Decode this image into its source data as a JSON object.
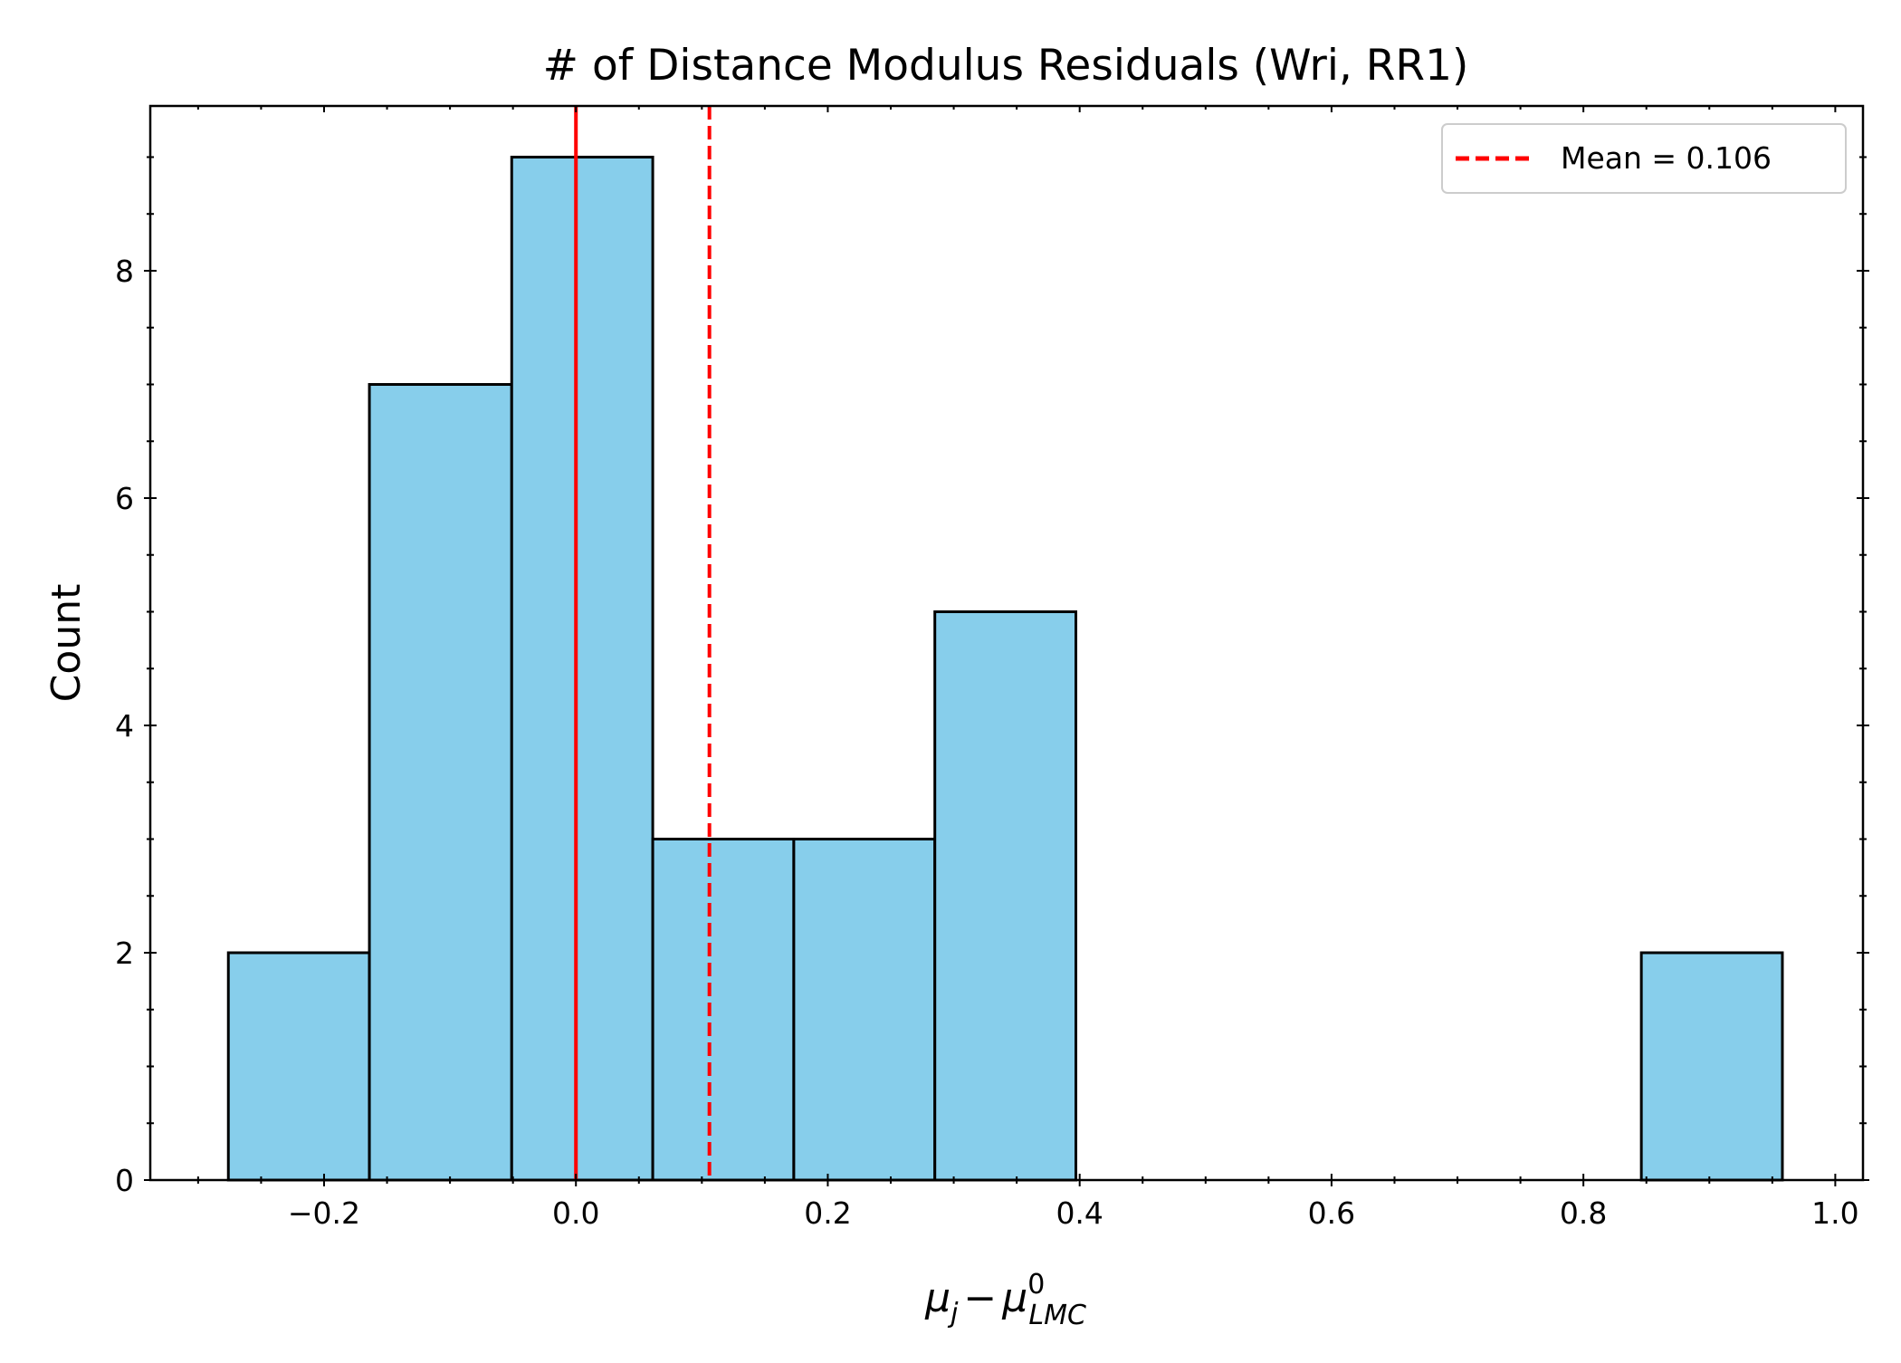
{
  "chart_data": {
    "type": "bar",
    "title": "# of Distance Modulus Residuals (Wri, RR1)",
    "xlabel": {
      "base": "μ",
      "sub1": "j",
      "minus": "−",
      "base2": "μ",
      "sup": "0",
      "sub2": "LMC"
    },
    "ylabel": "Count",
    "xlim": [
      -0.338,
      1.022
    ],
    "ylim": [
      0,
      9.45
    ],
    "xticks": [
      -0.2,
      0.0,
      0.2,
      0.4,
      0.6,
      0.8,
      1.0
    ],
    "xtick_labels": [
      "−0.2",
      "0.0",
      "0.2",
      "0.4",
      "0.6",
      "0.8",
      "1.0"
    ],
    "yticks": [
      0,
      2,
      4,
      6,
      8
    ],
    "ytick_labels": [
      "0",
      "2",
      "4",
      "6",
      "8"
    ],
    "bin_edges": [
      -0.276,
      -0.164,
      -0.051,
      0.061,
      0.173,
      0.285,
      0.397,
      0.509,
      0.622,
      0.734,
      0.846,
      0.958
    ],
    "counts": [
      2,
      7,
      9,
      3,
      3,
      5,
      0,
      0,
      0,
      0,
      2
    ],
    "bar_color": "#87CEEB",
    "bar_edge_color": "#000000",
    "zero_line": {
      "x": 0.0,
      "color": "#ff0000",
      "style": "solid"
    },
    "mean_line": {
      "x": 0.106,
      "color": "#ff0000",
      "style": "dashed"
    },
    "legend": {
      "position": "top-right",
      "entries": [
        {
          "label": "Mean = 0.106",
          "style": "dashed",
          "color": "#ff0000"
        }
      ]
    },
    "grid": false
  }
}
